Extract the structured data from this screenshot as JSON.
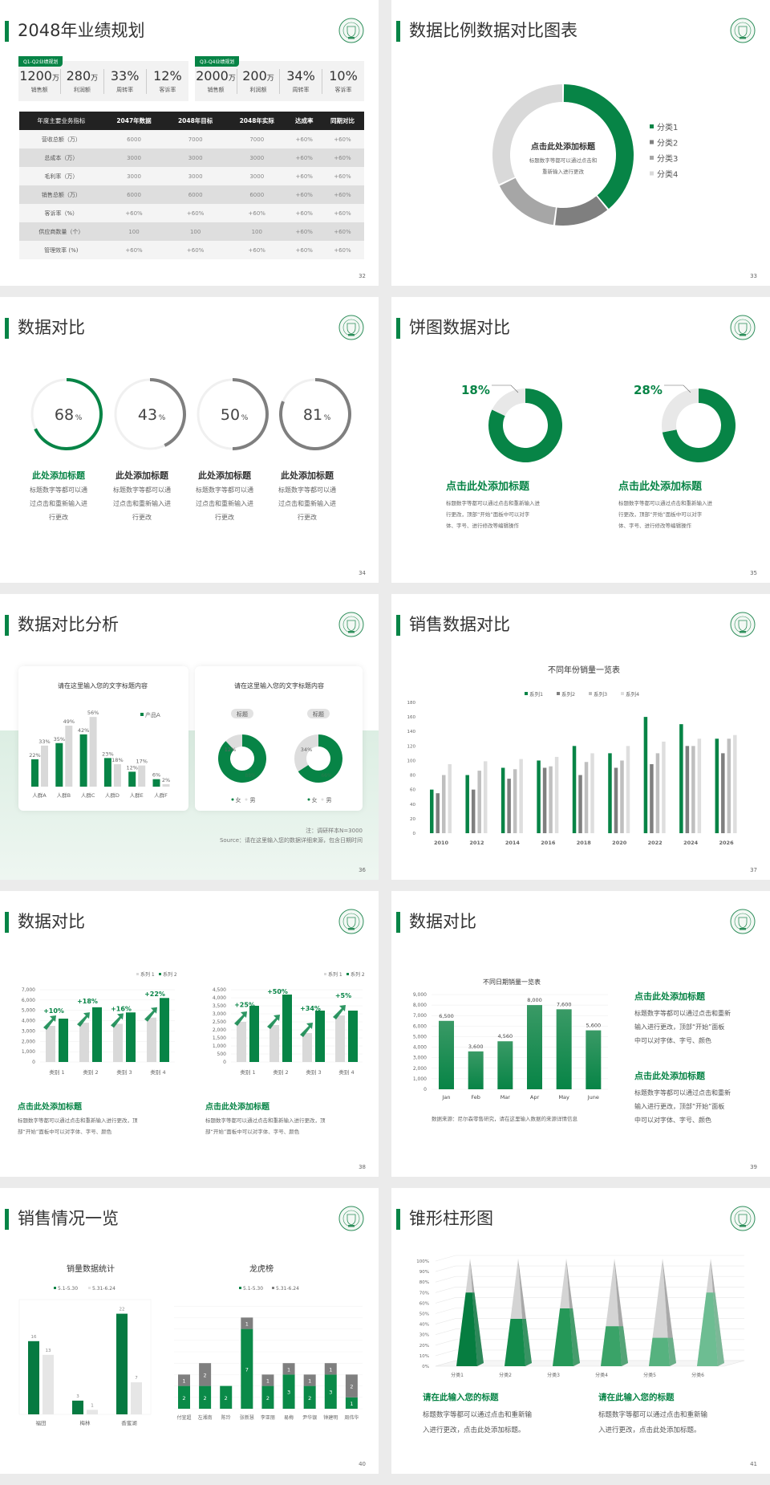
{
  "colors": {
    "green": "#078446",
    "dark_gray": "#7f7f7f",
    "mid_gray": "#a6a6a6",
    "light_gray": "#d9d9d9",
    "pale_gray": "#ececec"
  },
  "slides": {
    "s32": {
      "title": "2048年业绩规划",
      "page": "32",
      "q1": {
        "tag": "Q1-Q2业绩规划",
        "stats": [
          {
            "value": "1200",
            "unit": "万",
            "label": "销售额"
          },
          {
            "value": "280",
            "unit": "万",
            "label": "利润额"
          },
          {
            "value": "33%",
            "unit": "",
            "label": "周转率"
          },
          {
            "value": "12%",
            "unit": "",
            "label": "客诉率"
          }
        ]
      },
      "q2": {
        "tag": "Q3-Q4业绩规划",
        "stats": [
          {
            "value": "2000",
            "unit": "万",
            "label": "销售额"
          },
          {
            "value": "200",
            "unit": "万",
            "label": "利润额"
          },
          {
            "value": "34%",
            "unit": "",
            "label": "周转率"
          },
          {
            "value": "10%",
            "unit": "",
            "label": "客诉率"
          }
        ]
      },
      "table": {
        "headers": [
          "年度主要业务指标",
          "2047年数据",
          "2048年目标",
          "2048年实际",
          "达成率",
          "同期对比"
        ],
        "rows": [
          [
            "营收总额（万）",
            "6000",
            "7000",
            "7000",
            "+60%",
            "+60%"
          ],
          [
            "总成本（万）",
            "3000",
            "3000",
            "3000",
            "+60%",
            "+60%"
          ],
          [
            "毛利率（万）",
            "3000",
            "3000",
            "3000",
            "+60%",
            "+60%"
          ],
          [
            "销售总额（万）",
            "6000",
            "6000",
            "6000",
            "+60%",
            "+60%"
          ],
          [
            "客诉率（%）",
            "+60%",
            "+60%",
            "+60%",
            "+60%",
            "+60%"
          ],
          [
            "供应商数量（个）",
            "100",
            "100",
            "100",
            "+60%",
            "+60%"
          ],
          [
            "管理效率 (%)",
            "+60%",
            "+60%",
            "+60%",
            "+60%",
            "+60%"
          ]
        ]
      }
    },
    "s33": {
      "title": "数据比例数据对比图表",
      "page": "33",
      "center_title": "点击此处添加标题",
      "center_text": [
        "标题数字等都可以通过点击和",
        "重新输入进行更改"
      ]
    },
    "s34": {
      "title": "数据对比",
      "page": "34",
      "items": [
        {
          "heading": "此处添加标题",
          "text": [
            "标题数字等都可以通",
            "过点击和重新输入进",
            "行更改"
          ]
        },
        {
          "heading": "此处添加标题",
          "text": [
            "标题数字等都可以通",
            "过点击和重新输入进",
            "行更改"
          ]
        },
        {
          "heading": "此处添加标题",
          "text": [
            "标题数字等都可以通",
            "过点击和重新输入进",
            "行更改"
          ]
        },
        {
          "heading": "此处添加标题",
          "text": [
            "标题数字等都可以通",
            "过点击和重新输入进",
            "行更改"
          ]
        }
      ]
    },
    "s35": {
      "title": "饼图数据对比",
      "page": "35",
      "items": [
        {
          "heading": "点击此处添加标题",
          "text": [
            "标题数字等都可以通过点击和重新输入进",
            "行更改，顶部“开始”面板中可以对字",
            "体、字号、进行修改等编辑操作"
          ]
        },
        {
          "heading": "点击此处添加标题",
          "text": [
            "标题数字等都可以通过点击和重新输入进",
            "行更改，顶部“开始”面板中可以对字",
            "体、字号、进行修改等编辑操作"
          ]
        }
      ]
    },
    "s36": {
      "title": "数据对比分析",
      "page": "36",
      "card_titles": [
        "请在这里输入您的文字标题内容",
        "请在这里输入您的文字标题内容"
      ],
      "pills": [
        "标题",
        "标题"
      ],
      "note": "注：调研样本N=3000",
      "source": "Source：请在这里输入您的数据详细来源，包含日期时间"
    },
    "s37": {
      "title": "销售数据对比",
      "page": "37"
    },
    "s38": {
      "title": "数据对比",
      "page": "38",
      "items": [
        {
          "heading": "点击此处添加标题",
          "text": [
            "标题数字等都可以通过点击和重新输入进行更改，顶",
            "部“开始”面板中可以对字体、字号、颜色"
          ]
        },
        {
          "heading": "点击此处添加标题",
          "text": [
            "标题数字等都可以通过点击和重新输入进行更改，顶",
            "部“开始”面板中可以对字体、字号、颜色"
          ]
        }
      ]
    },
    "s39": {
      "title": "数据对比",
      "page": "39",
      "source": "数据来源：尼尔森零售研究，请在这里输入数据的来源详情信息",
      "items": [
        {
          "heading": "点击此处添加标题",
          "text": [
            "标题数字等都可以通过点击和重新",
            "输入进行更改，顶部“开始”面板",
            "中可以对字体、字号、颜色"
          ]
        },
        {
          "heading": "点击此处添加标题",
          "text": [
            "标题数字等都可以通过点击和重新",
            "输入进行更改，顶部“开始”面板",
            "中可以对字体、字号、颜色"
          ]
        }
      ]
    },
    "s40": {
      "title": "销售情况一览",
      "page": "40"
    },
    "s41": {
      "title": "锥形柱形图",
      "page": "41",
      "items": [
        {
          "heading": "请在此输入您的标题",
          "text": [
            "标题数字等都可以通过点击和重新输",
            "入进行更改，点击此处添加标题。"
          ]
        },
        {
          "heading": "请在此输入您的标题",
          "text": [
            "标题数字等都可以通过点击和重新输",
            "入进行更改，点击此处添加标题。"
          ]
        }
      ]
    }
  },
  "chart_data": [
    {
      "type": "pie",
      "style": "donut",
      "categories": [
        "分类1",
        "分类2",
        "分类3",
        "分类4"
      ],
      "values": [
        39,
        13,
        16,
        32
      ],
      "colors": [
        "#078446",
        "#7f7f7f",
        "#a6a6a6",
        "#d9d9d9"
      ],
      "legend": "right"
    },
    {
      "type": "pie",
      "style": "progress-rings",
      "values": [
        68,
        43,
        50,
        81
      ],
      "labels": [
        "68",
        "43",
        "50",
        "81"
      ],
      "unit": "%",
      "colors": [
        "#078446",
        "#7f7f7f",
        "#7f7f7f",
        "#7f7f7f"
      ]
    },
    {
      "type": "pie",
      "style": "donut",
      "values": [
        18,
        28
      ],
      "labels": [
        "18%",
        "28%"
      ]
    },
    {
      "type": "bar",
      "title": "请在这里输入您的文字标题内容",
      "categories": [
        "人群A",
        "人群B",
        "人群C",
        "人群D",
        "人群E",
        "人群F"
      ],
      "series": [
        {
          "name": "产品A",
          "values": [
            22,
            35,
            42,
            23,
            12,
            6
          ]
        },
        {
          "values": [
            33,
            49,
            56,
            18,
            17,
            2
          ]
        }
      ],
      "unit": "%",
      "legend": "top-right"
    },
    {
      "type": "pie",
      "style": "donut",
      "categories": [
        "女",
        "男"
      ],
      "charts": [
        {
          "values": [
            88,
            12
          ],
          "labels": [
            "88%",
            "12%"
          ]
        },
        {
          "values": [
            66,
            34
          ],
          "labels": [
            "66%",
            "34%"
          ]
        }
      ]
    },
    {
      "type": "bar",
      "title": "不同年份销量一览表",
      "categories": [
        "2010",
        "2012",
        "2014",
        "2016",
        "2018",
        "2020",
        "2022",
        "2024",
        "2026"
      ],
      "series": [
        {
          "name": "系列1",
          "values": [
            60,
            80,
            90,
            100,
            120,
            110,
            160,
            150,
            130
          ]
        },
        {
          "name": "系列2",
          "values": [
            55,
            60,
            75,
            90,
            80,
            90,
            95,
            120,
            110
          ]
        },
        {
          "name": "系列3",
          "values": [
            80,
            86,
            88,
            92,
            98,
            100,
            110,
            120,
            130
          ]
        },
        {
          "name": "系列4",
          "values": [
            95,
            99,
            102,
            105,
            110,
            120,
            126,
            130,
            135
          ]
        }
      ],
      "ylim": [
        0,
        180
      ],
      "yticks": [
        "0",
        "20",
        "40",
        "60",
        "80",
        "100",
        "120",
        "140",
        "160",
        "180"
      ],
      "legend": "top"
    },
    {
      "type": "bar",
      "categories": [
        "类别 1",
        "类别 2",
        "类别 3",
        "类别 4"
      ],
      "series": [
        {
          "name": "系列 1",
          "values": [
            3500,
            3800,
            3700,
            4300
          ]
        },
        {
          "name": "系列 2",
          "values": [
            4200,
            5300,
            4800,
            6200
          ]
        }
      ],
      "annotations": [
        "+10%",
        "+18%",
        "+16%",
        "+22%"
      ],
      "ylim": [
        0,
        7000
      ],
      "yticks": [
        "0",
        "1,000",
        "2,000",
        "3,000",
        "4,000",
        "5,000",
        "6,000",
        "7,000"
      ],
      "legend": "top-right"
    },
    {
      "type": "bar",
      "categories": [
        "类别 1",
        "类别 2",
        "类别 3",
        "类别 4"
      ],
      "series": [
        {
          "name": "系列 1",
          "values": [
            2500,
            2300,
            1800,
            2900
          ]
        },
        {
          "name": "系列 2",
          "values": [
            3500,
            4200,
            3200,
            3200
          ]
        }
      ],
      "annotations": [
        "+25%",
        "+50%",
        "+34%",
        "+5%"
      ],
      "ylim": [
        0,
        4500
      ],
      "yticks": [
        "0",
        "500",
        "1,000",
        "1,500",
        "2,000",
        "2,500",
        "3,000",
        "3,500",
        "4,000",
        "4,500"
      ],
      "legend": "top-right"
    },
    {
      "type": "bar",
      "title": "不同日期销量一览表",
      "categories": [
        "Jan",
        "Feb",
        "Mar",
        "Apr",
        "May",
        "June"
      ],
      "values": [
        6500,
        3600,
        4560,
        8000,
        7600,
        5600
      ],
      "data_labels": [
        "6,500",
        "3,600",
        "4,560",
        "8,000",
        "7,600",
        "5,600"
      ],
      "ylim": [
        0,
        9000
      ],
      "yticks": [
        "0",
        "1,000",
        "2,000",
        "3,000",
        "4,000",
        "5,000",
        "6,000",
        "7,000",
        "8,000",
        "9,000"
      ]
    },
    {
      "type": "bar",
      "title": "销量数据统计",
      "categories": [
        "福田",
        "梅林",
        "香蜜湖"
      ],
      "series": [
        {
          "name": "5.1-5.30",
          "values": [
            16,
            3,
            22
          ]
        },
        {
          "name": "5.31-6.24",
          "values": [
            13,
            1,
            7
          ]
        }
      ],
      "legend": "top"
    },
    {
      "type": "bar",
      "style": "stacked",
      "title": "龙虎榜",
      "categories": [
        "付宣超",
        "左湘南",
        "陈玲",
        "张新慧",
        "李亚丽",
        "易梅",
        "尹华银",
        "钟建明",
        "周伟华"
      ],
      "series": [
        {
          "name": "5.1-5.30",
          "values": [
            2,
            2,
            2,
            7,
            2,
            3,
            2,
            3,
            1
          ]
        },
        {
          "name": "5.31-6.24",
          "values": [
            1,
            2,
            0,
            1,
            1,
            1,
            1,
            1,
            2
          ]
        }
      ],
      "legend": "top"
    },
    {
      "type": "bar",
      "style": "3d-cone",
      "categories": [
        "分类1",
        "分类2",
        "分类3",
        "分类4",
        "分类5",
        "分类6"
      ],
      "values": [
        70,
        45,
        55,
        38,
        27,
        70
      ],
      "ylim": [
        0,
        100
      ],
      "yticks": [
        "0%",
        "10%",
        "20%",
        "30%",
        "40%",
        "50%",
        "60%",
        "70%",
        "80%",
        "90%",
        "100%"
      ],
      "colors": [
        "#067d40",
        "#138c4c",
        "#259858",
        "#3aa368",
        "#56b27f",
        "#6dbd92"
      ]
    }
  ]
}
